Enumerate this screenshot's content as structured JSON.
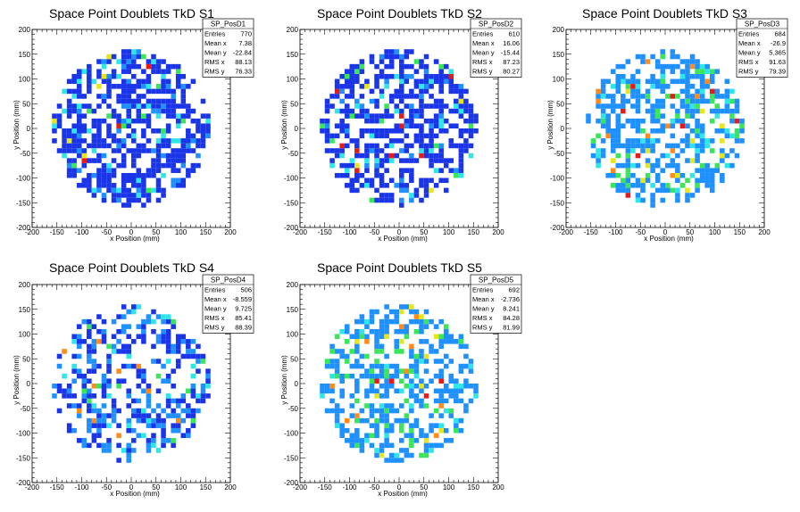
{
  "chart_data": [
    {
      "type": "heatmap",
      "title": "Space Point Doublets TkD S1",
      "xlabel": "x Position (mm)",
      "ylabel": "y Position (mm)",
      "xlim": [
        -200,
        200
      ],
      "ylim": [
        -200,
        200
      ],
      "xticks": [
        "-200",
        "-150",
        "-100",
        "-50",
        "0",
        "50",
        "100",
        "150",
        "200"
      ],
      "yticks": [
        "-200",
        "-150",
        "-100",
        "-50",
        "0",
        "50",
        "100",
        "150",
        "200"
      ],
      "stats": {
        "name": "SP_PosD1",
        "rows": [
          {
            "label": "Entries",
            "value": "770"
          },
          {
            "label": "Mean x",
            "value": "7.38"
          },
          {
            "label": "Mean y",
            "value": "-22.84"
          },
          {
            "label": "RMS x",
            "value": "88.13"
          },
          {
            "label": "RMS y",
            "value": "76.33"
          }
        ]
      },
      "entries": 770,
      "mean_x": 7.38,
      "mean_y": -22.84,
      "rms_x": 88.13,
      "rms_y": 76.33,
      "palette": "high-density"
    },
    {
      "type": "heatmap",
      "title": "Space Point Doublets TkD S2",
      "xlabel": "x Position (mm)",
      "ylabel": "y Position (mm)",
      "xlim": [
        -200,
        200
      ],
      "ylim": [
        -200,
        200
      ],
      "xticks": [
        "-200",
        "-150",
        "-100",
        "-50",
        "0",
        "50",
        "100",
        "150",
        "200"
      ],
      "yticks": [
        "-200",
        "-150",
        "-100",
        "-50",
        "0",
        "50",
        "100",
        "150",
        "200"
      ],
      "stats": {
        "name": "SP_PosD2",
        "rows": [
          {
            "label": "Entries",
            "value": "610"
          },
          {
            "label": "Mean x",
            "value": "16.06"
          },
          {
            "label": "Mean y",
            "value": "-15.44"
          },
          {
            "label": "RMS x",
            "value": "87.23"
          },
          {
            "label": "RMS y",
            "value": "80.27"
          }
        ]
      },
      "entries": 610,
      "mean_x": 16.06,
      "mean_y": -15.44,
      "rms_x": 87.23,
      "rms_y": 80.27,
      "palette": "high-density"
    },
    {
      "type": "heatmap",
      "title": "Space Point Doublets TkD S3",
      "xlabel": "x Position (mm)",
      "ylabel": "y Position (mm)",
      "xlim": [
        -200,
        200
      ],
      "ylim": [
        -200,
        200
      ],
      "xticks": [
        "-200",
        "-150",
        "-100",
        "-50",
        "0",
        "50",
        "100",
        "150",
        "200"
      ],
      "yticks": [
        "-200",
        "-150",
        "-100",
        "-50",
        "0",
        "50",
        "100",
        "150",
        "200"
      ],
      "stats": {
        "name": "SP_PosD3",
        "rows": [
          {
            "label": "Entries",
            "value": "684"
          },
          {
            "label": "Mean x",
            "value": "-26.9"
          },
          {
            "label": "Mean y",
            "value": "5.365"
          },
          {
            "label": "RMS x",
            "value": "91.63"
          },
          {
            "label": "RMS y",
            "value": "79.39"
          }
        ]
      },
      "entries": 684,
      "mean_x": -26.9,
      "mean_y": 5.365,
      "rms_x": 91.63,
      "rms_y": 79.39,
      "palette": "low-density"
    },
    {
      "type": "heatmap",
      "title": "Space Point Doublets TkD S4",
      "xlabel": "x Position (mm)",
      "ylabel": "y Position (mm)",
      "xlim": [
        -200,
        200
      ],
      "ylim": [
        -200,
        200
      ],
      "xticks": [
        "-200",
        "-150",
        "-100",
        "-50",
        "0",
        "50",
        "100",
        "150",
        "200"
      ],
      "yticks": [
        "-200",
        "-150",
        "-100",
        "-50",
        "0",
        "50",
        "100",
        "150",
        "200"
      ],
      "stats": {
        "name": "SP_PosD4",
        "rows": [
          {
            "label": "Entries",
            "value": "506"
          },
          {
            "label": "Mean x",
            "value": "-8.559"
          },
          {
            "label": "Mean y",
            "value": "9.725"
          },
          {
            "label": "RMS x",
            "value": "85.41"
          },
          {
            "label": "RMS y",
            "value": "88.39"
          }
        ]
      },
      "entries": 506,
      "mean_x": -8.559,
      "mean_y": 9.725,
      "rms_x": 85.41,
      "rms_y": 88.39,
      "palette": "mixed"
    },
    {
      "type": "heatmap",
      "title": "Space Point Doublets TkD S5",
      "xlabel": "x Position (mm)",
      "ylabel": "y Position (mm)",
      "xlim": [
        -200,
        200
      ],
      "ylim": [
        -200,
        200
      ],
      "xticks": [
        "-200",
        "-150",
        "-100",
        "-50",
        "0",
        "50",
        "100",
        "150",
        "200"
      ],
      "yticks": [
        "-200",
        "-150",
        "-100",
        "-50",
        "0",
        "50",
        "100",
        "150",
        "200"
      ],
      "stats": {
        "name": "SP_PosD5",
        "rows": [
          {
            "label": "Entries",
            "value": "692"
          },
          {
            "label": "Mean x",
            "value": "-2.736"
          },
          {
            "label": "Mean y",
            "value": "8.241"
          },
          {
            "label": "RMS x",
            "value": "84.28"
          },
          {
            "label": "RMS y",
            "value": "81.99"
          }
        ]
      },
      "entries": 692,
      "mean_x": -2.736,
      "mean_y": 8.241,
      "rms_x": 84.28,
      "rms_y": 81.99,
      "palette": "low-density"
    }
  ],
  "colors": {
    "background": "#ffffff",
    "frame": "#000000",
    "bin_blue": "#1a35e8",
    "bin_lightblue": "#1e90ff",
    "bin_cyan": "#2ee6e6",
    "bin_green": "#39e659",
    "bin_yellow": "#e6e61a",
    "bin_orange": "#ff8c1a",
    "bin_red": "#e61a1a"
  }
}
